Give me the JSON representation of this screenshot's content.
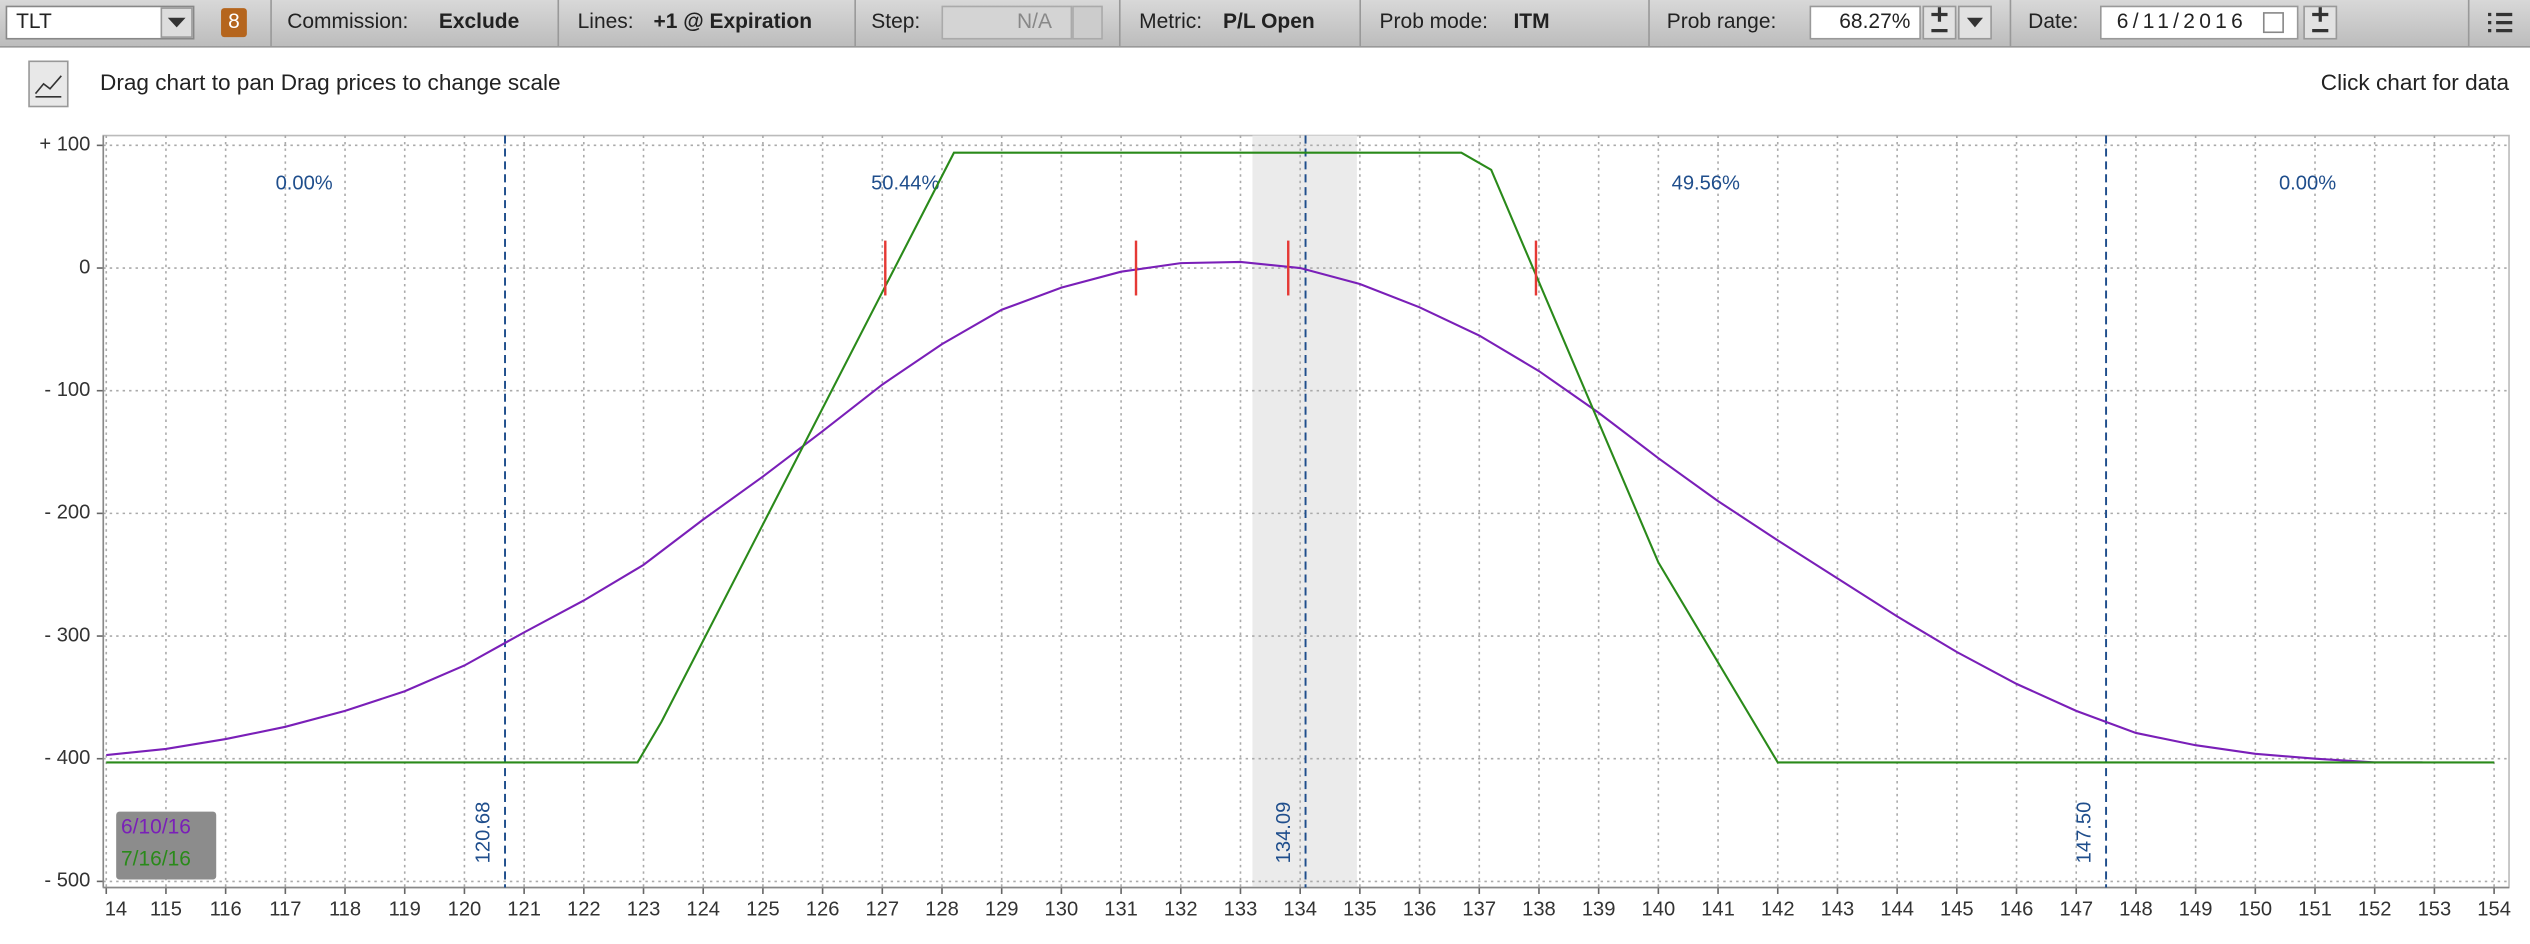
{
  "toolbar": {
    "symbol": "TLT",
    "badge": "8",
    "commission_label": "Commission:",
    "commission": "Exclude",
    "lines_label": "Lines:",
    "lines": "+1 @ Expiration",
    "step_label": "Step:",
    "step": "N/A",
    "metric_label": "Metric:",
    "metric": "P/L Open",
    "prob_mode_label": "Prob mode:",
    "prob_mode": "ITM",
    "prob_range_label": "Prob range:",
    "prob_range": "68.27%",
    "date_label": "Date:",
    "date": "06/11/2016"
  },
  "hint": "Drag chart to pan Drag prices to change scale",
  "hint_right": "Click chart for data",
  "chart_data": {
    "type": "line",
    "xlim": [
      113.95,
      154.25
    ],
    "ylim": [
      -505,
      108
    ],
    "xticks": [
      {
        "value": 114,
        "label": "14"
      },
      115,
      116,
      117,
      118,
      119,
      120,
      121,
      122,
      123,
      124,
      125,
      126,
      127,
      128,
      129,
      130,
      131,
      132,
      133,
      134,
      135,
      136,
      137,
      138,
      139,
      140,
      141,
      142,
      143,
      144,
      145,
      146,
      147,
      148,
      149,
      150,
      151,
      152,
      153,
      154
    ],
    "yticks": [
      {
        "value": 100,
        "label": "+ 100"
      },
      0,
      {
        "value": -100,
        "label": "- 100"
      },
      {
        "value": -200,
        "label": "- 200"
      },
      {
        "value": -300,
        "label": "- 300"
      },
      {
        "value": -400,
        "label": "- 400"
      },
      {
        "value": -500,
        "label": "- 500"
      }
    ],
    "grid": true,
    "series": [
      {
        "name": "6/10/16",
        "color": "#7a1fb8",
        "x": [
          114,
          115,
          116,
          117,
          118,
          119,
          120,
          121,
          122,
          123,
          124,
          125,
          126,
          127,
          128,
          129,
          130,
          131,
          132,
          133,
          134,
          135,
          136,
          137,
          138,
          139,
          140,
          141,
          142,
          143,
          144,
          145,
          146,
          147,
          148,
          149,
          150,
          151,
          152,
          152.8
        ],
        "values": [
          -397,
          -392,
          -384,
          -374,
          -361,
          -345,
          -324,
          -297,
          -271,
          -242,
          -205,
          -170,
          -133,
          -95,
          -62,
          -34,
          -16,
          -3,
          4,
          5,
          0,
          -13,
          -32,
          -55,
          -84,
          -118,
          -155,
          -190,
          -222,
          -253,
          -284,
          -313,
          -339,
          -361,
          -379,
          -389,
          -396,
          -400,
          -403,
          -403
        ]
      },
      {
        "name": "7/16/16",
        "color": "#2a8a1a",
        "x": [
          114,
          122.9,
          123.3,
          128.2,
          136.7,
          137.2,
          140,
          142,
          154
        ],
        "values": [
          -403,
          -403,
          -370,
          94,
          94,
          80,
          -240,
          -403,
          -403
        ]
      }
    ],
    "breakevens": [
      127.05,
      131.25,
      133.8,
      137.95
    ],
    "breakeven_color": "#e53935",
    "shade_x": [
      133.2,
      134.95
    ],
    "price_lines": [
      120.68,
      134.09,
      {
        "value": 147.5,
        "label": "147.50"
      }
    ],
    "price_line_color": "#1f4e8c",
    "region_probabilities": {
      "values": [
        0,
        50.44,
        49.56,
        0
      ],
      "value_labels": [
        "0.00%",
        "50.44%",
        "49.56%",
        "0.00%"
      ]
    }
  }
}
